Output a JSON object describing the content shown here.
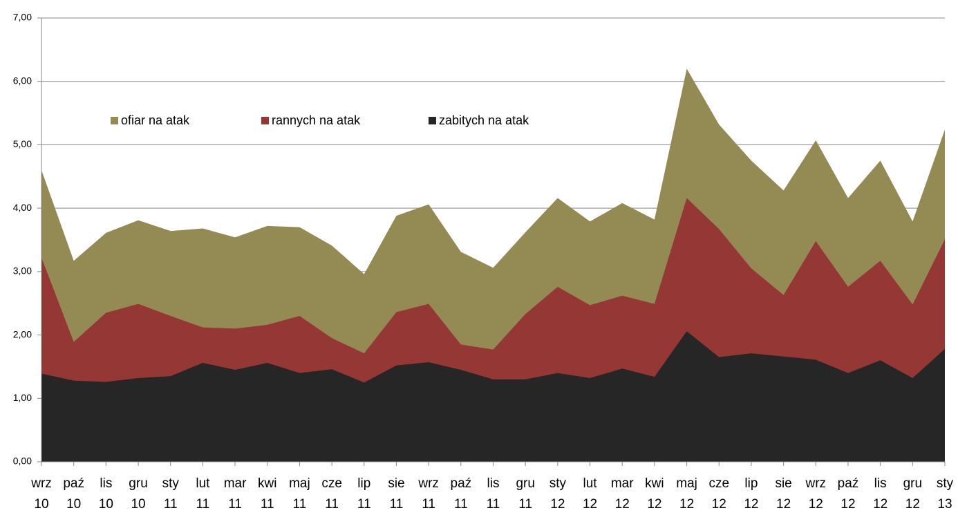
{
  "chart_data": {
    "type": "area",
    "categories": [
      "wrz\n10",
      "paź\n10",
      "lis\n10",
      "gru\n10",
      "sty\n11",
      "lut\n11",
      "mar\n11",
      "kwi\n11",
      "maj\n11",
      "cze\n11",
      "lip\n11",
      "sie\n11",
      "wrz\n11",
      "paź\n11",
      "lis\n11",
      "gru\n11",
      "sty\n12",
      "lut\n12",
      "mar\n12",
      "kwi\n12",
      "maj\n12",
      "cze\n12",
      "lip\n12",
      "sie\n12",
      "wrz\n12",
      "paź\n12",
      "lis\n12",
      "gru\n12",
      "sty\n13"
    ],
    "series": [
      {
        "name": "ofiar na atak",
        "color": "#948a54",
        "values": [
          4.6,
          3.17,
          3.61,
          3.81,
          3.64,
          3.68,
          3.54,
          3.72,
          3.7,
          3.41,
          2.96,
          3.88,
          4.06,
          3.31,
          3.06,
          3.62,
          4.16,
          3.79,
          4.08,
          3.82,
          6.2,
          5.32,
          4.75,
          4.28,
          5.07,
          4.16,
          4.75,
          3.79,
          5.24
        ]
      },
      {
        "name": "rannych na atak",
        "color": "#953735",
        "values": [
          3.22,
          1.89,
          2.35,
          2.49,
          2.3,
          2.12,
          2.1,
          2.16,
          2.3,
          1.95,
          1.71,
          2.36,
          2.49,
          1.85,
          1.77,
          2.33,
          2.76,
          2.47,
          2.62,
          2.49,
          4.16,
          3.67,
          3.05,
          2.63,
          3.48,
          2.76,
          3.17,
          2.48,
          3.51
        ]
      },
      {
        "name": "zabitych na atak",
        "color": "#262626",
        "values": [
          1.39,
          1.28,
          1.26,
          1.32,
          1.35,
          1.56,
          1.45,
          1.56,
          1.4,
          1.46,
          1.25,
          1.52,
          1.57,
          1.45,
          1.3,
          1.3,
          1.4,
          1.32,
          1.47,
          1.34,
          2.06,
          1.65,
          1.71,
          1.66,
          1.61,
          1.4,
          1.6,
          1.32,
          1.78
        ]
      }
    ],
    "ylim": [
      0,
      7
    ],
    "yticks": [
      {
        "value": 0,
        "label": "0,00"
      },
      {
        "value": 1,
        "label": "1,00"
      },
      {
        "value": 2,
        "label": "2,00"
      },
      {
        "value": 3,
        "label": "3,00"
      },
      {
        "value": 4,
        "label": "4,00"
      },
      {
        "value": 5,
        "label": "5,00"
      },
      {
        "value": 6,
        "label": "6,00"
      },
      {
        "value": 7,
        "label": "7,00"
      }
    ],
    "grid": true,
    "legend": "top-left"
  }
}
